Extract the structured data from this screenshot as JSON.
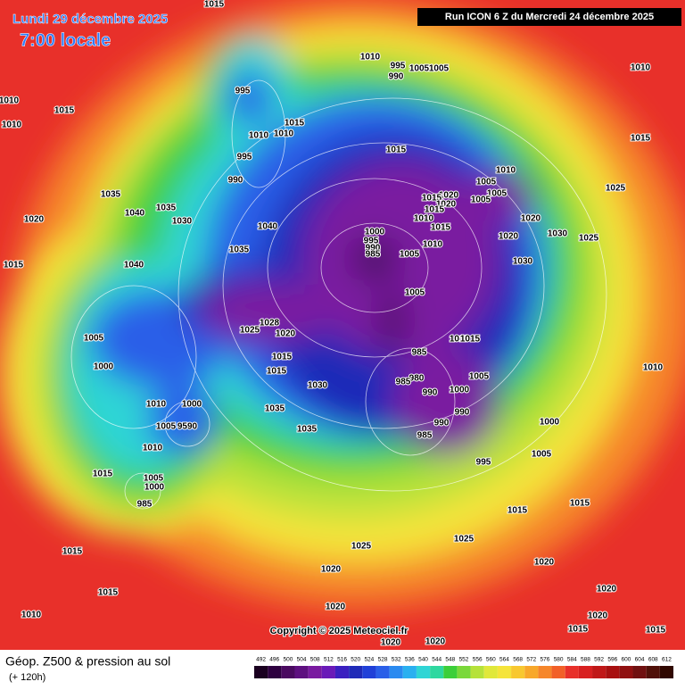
{
  "header": {
    "date": "Lundi 29 décembre 2025",
    "time": "7:00 locale",
    "run": "Run ICON 6 Z du Mercredi 24 décembre 2025"
  },
  "copyright": "Copyright © 2025 Meteociel.fr",
  "footer": {
    "title": "Géop. Z500 & pression au sol",
    "lead": "(+ 120h)"
  },
  "scale": {
    "labels": [
      "492",
      "496",
      "500",
      "504",
      "508",
      "512",
      "516",
      "520",
      "524",
      "528",
      "532",
      "536",
      "540",
      "544",
      "548",
      "552",
      "556",
      "560",
      "564",
      "568",
      "572",
      "576",
      "580",
      "584",
      "588",
      "592",
      "596",
      "600",
      "604",
      "608",
      "612"
    ]
  },
  "isobar_labels": [
    "1015",
    "1010",
    "995",
    "990",
    "1005",
    "1005",
    "1010",
    "995",
    "1010",
    "1015",
    "1010",
    "1015",
    "1010",
    "1010",
    "1015",
    "995",
    "990",
    "1010",
    "1005",
    "1005",
    "1005",
    "1015",
    "1025",
    "1035",
    "1035",
    "1040",
    "1030",
    "1020",
    "1020",
    "1015",
    "1020",
    "1015",
    "1010",
    "1015",
    "1000",
    "995",
    "990",
    "985",
    "1005",
    "1010",
    "1020",
    "1020",
    "1030",
    "1025",
    "1030",
    "1040",
    "1035",
    "1040",
    "1015",
    "1005",
    "1025",
    "1028",
    "1020",
    "1015",
    "1010",
    "1015",
    "985",
    "1005",
    "1000",
    "1015",
    "980",
    "985",
    "990",
    "1000",
    "1005",
    "1030",
    "990",
    "990",
    "985",
    "995",
    "1010",
    "1000",
    "9590",
    "1005",
    "1035",
    "1035",
    "1010",
    "1015",
    "1005",
    "1000",
    "985",
    "1005",
    "1000",
    "1015",
    "1025",
    "1025",
    "1020",
    "1020",
    "1015",
    "1015",
    "1015",
    "1020",
    "1010",
    "1020",
    "1020",
    "1020",
    "1020",
    "1015",
    "1015",
    "1010"
  ]
}
